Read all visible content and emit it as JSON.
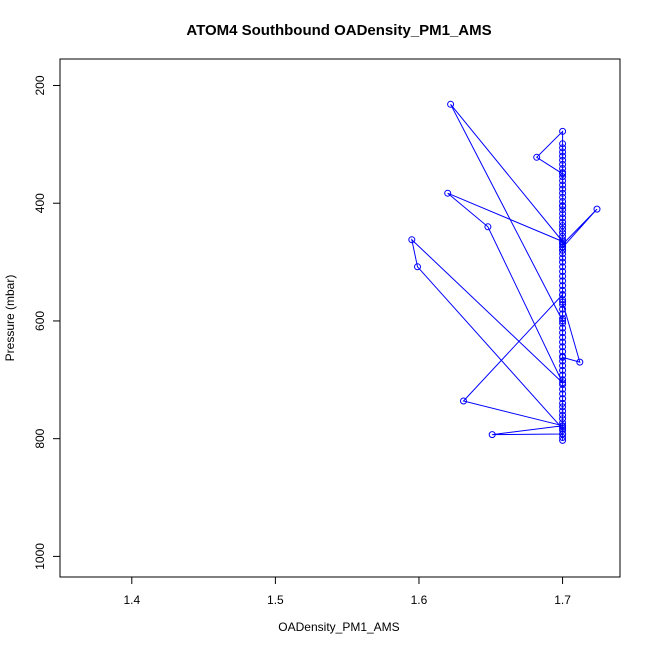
{
  "chart_data": {
    "type": "line",
    "title": "ATOM4 Southbound OADensity_PM1_AMS",
    "xlabel": "OADensity_PM1_AMS",
    "ylabel": "Pressure (mbar)",
    "xlim": [
      1.35,
      1.74
    ],
    "ylim": [
      1035,
      155
    ],
    "y_inverted": true,
    "grid": false,
    "x_ticks": [
      "1.4",
      "1.5",
      "1.6",
      "1.7"
    ],
    "y_ticks": [
      "200",
      "400",
      "600",
      "800",
      "1000"
    ],
    "series_color": "#0000ff",
    "marker": "open-circle",
    "x": [
      1.7,
      1.7,
      1.7,
      1.7,
      1.7,
      1.7,
      1.7,
      1.7,
      1.7,
      1.7,
      1.7,
      1.7,
      1.7,
      1.7,
      1.7,
      1.7,
      1.7,
      1.7,
      1.7,
      1.7,
      1.7,
      1.7,
      1.7,
      1.7,
      1.7,
      1.7,
      1.7,
      1.7,
      1.7,
      1.7,
      1.7,
      1.7,
      1.7,
      1.7,
      1.7,
      1.7,
      1.7,
      1.7,
      1.7,
      1.7,
      1.7,
      1.7,
      1.7,
      1.7,
      1.7,
      1.7,
      1.7,
      1.7,
      1.7,
      1.7,
      1.7,
      1.7,
      1.7,
      1.7,
      1.7,
      1.7,
      1.7,
      1.7,
      1.7,
      1.7,
      1.7,
      1.7,
      1.7,
      1.7,
      1.7,
      1.7,
      1.7,
      1.7,
      1.7,
      1.7,
      1.7,
      1.7,
      1.651,
      1.7,
      1.631,
      1.7,
      1.7,
      1.712,
      1.7,
      1.7,
      1.7,
      1.724,
      1.7,
      1.7,
      1.7,
      1.682,
      1.7,
      1.7,
      1.622,
      1.7,
      1.62,
      1.648,
      1.7,
      1.595,
      1.599,
      1.7,
      1.7
    ],
    "y": [
      803,
      798,
      792,
      786,
      780,
      773,
      766,
      760,
      753,
      746,
      740,
      732,
      724,
      716,
      708,
      700,
      692,
      684,
      676,
      668,
      660,
      652,
      644,
      636,
      628,
      620,
      612,
      604,
      596,
      588,
      580,
      572,
      564,
      556,
      548,
      540,
      532,
      524,
      516,
      508,
      500,
      493,
      486,
      480,
      474,
      468,
      462,
      456,
      450,
      444,
      438,
      432,
      425,
      418,
      411,
      404,
      397,
      390,
      383,
      376,
      369,
      362,
      355,
      348,
      341,
      334,
      327,
      320,
      313,
      306,
      299,
      792,
      793,
      778,
      736,
      555,
      662,
      670,
      568,
      480,
      475,
      410,
      470,
      405,
      350,
      322,
      278,
      600,
      232,
      465,
      383,
      440,
      705,
      462,
      508,
      783,
      700
    ]
  }
}
